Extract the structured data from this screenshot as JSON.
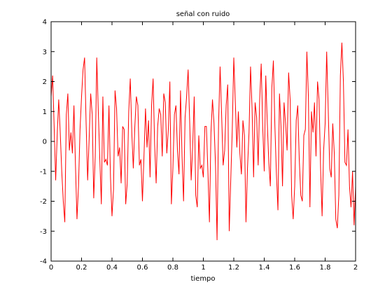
{
  "chart_data": {
    "type": "line",
    "title": "señal con ruido",
    "x_label": "tiempo",
    "x": [
      0,
      0.01,
      0.02,
      0.03,
      0.04,
      0.05,
      0.06,
      0.07,
      0.08,
      0.09,
      0.1,
      0.11,
      0.12,
      0.13,
      0.14,
      0.15,
      0.16,
      0.17,
      0.18,
      0.19,
      0.2,
      0.21,
      0.22,
      0.23,
      0.24,
      0.25,
      0.26,
      0.27,
      0.28,
      0.29,
      0.3,
      0.31,
      0.32,
      0.33,
      0.34,
      0.35,
      0.36,
      0.37,
      0.38,
      0.39,
      0.4,
      0.41,
      0.42,
      0.43,
      0.44,
      0.45,
      0.46,
      0.47,
      0.48,
      0.49,
      0.5,
      0.51,
      0.52,
      0.53,
      0.54,
      0.55,
      0.56,
      0.57,
      0.58,
      0.59,
      0.6,
      0.61,
      0.62,
      0.63,
      0.64,
      0.65,
      0.66,
      0.67,
      0.68,
      0.69,
      0.7,
      0.71,
      0.72,
      0.73,
      0.74,
      0.75,
      0.76,
      0.77,
      0.78,
      0.79,
      0.8,
      0.81,
      0.82,
      0.83,
      0.84,
      0.85,
      0.86,
      0.87,
      0.88,
      0.89,
      0.9,
      0.91,
      0.92,
      0.93,
      0.94,
      0.95,
      0.96,
      0.97,
      0.98,
      0.99,
      1,
      1.01,
      1.02,
      1.03,
      1.04,
      1.05,
      1.06,
      1.07,
      1.08,
      1.09,
      1.1,
      1.11,
      1.12,
      1.13,
      1.14,
      1.15,
      1.16,
      1.17,
      1.18,
      1.19,
      1.2,
      1.21,
      1.22,
      1.23,
      1.24,
      1.25,
      1.26,
      1.27,
      1.28,
      1.29,
      1.3,
      1.31,
      1.32,
      1.33,
      1.34,
      1.35,
      1.36,
      1.37,
      1.38,
      1.39,
      1.4,
      1.41,
      1.42,
      1.43,
      1.44,
      1.45,
      1.46,
      1.47,
      1.48,
      1.49,
      1.5,
      1.51,
      1.52,
      1.53,
      1.54,
      1.55,
      1.56,
      1.57,
      1.58,
      1.59,
      1.6,
      1.61,
      1.62,
      1.63,
      1.64,
      1.65,
      1.66,
      1.67,
      1.68,
      1.69,
      1.7,
      1.71,
      1.72,
      1.73,
      1.74,
      1.75,
      1.76,
      1.77,
      1.78,
      1.79,
      1.8,
      1.81,
      1.82,
      1.83,
      1.84,
      1.85,
      1.86,
      1.87,
      1.88,
      1.89,
      1.9,
      1.91,
      1.92,
      1.93,
      1.94,
      1.95,
      1.96,
      1.97,
      1.98,
      1.99,
      2
    ],
    "series": [
      {
        "color": "#ff0000",
        "values": [
          1.5,
          2.2,
          0.5,
          -1.3,
          0.2,
          1.4,
          0.3,
          -1.0,
          -2.0,
          -2.7,
          0.9,
          1.6,
          -0.3,
          0.3,
          -0.4,
          1.2,
          -0.8,
          -2.6,
          -1.5,
          0.4,
          1.5,
          2.4,
          2.8,
          0.6,
          -1.3,
          0.1,
          1.6,
          0.9,
          -1.9,
          -0.5,
          2.8,
          1.0,
          -0.6,
          -2.1,
          1.5,
          -0.7,
          -0.6,
          -0.8,
          1.2,
          -1.2,
          -2.5,
          -1.6,
          1.7,
          1.1,
          -0.5,
          -0.2,
          -1.4,
          0.5,
          0.4,
          -2.1,
          -1.4,
          1.0,
          2.1,
          0.3,
          -0.9,
          0.5,
          1.5,
          1.2,
          -0.8,
          -0.6,
          -2.0,
          -0.5,
          1.1,
          -0.2,
          0.7,
          -1.2,
          1.2,
          2.1,
          -0.1,
          -1.4,
          0.5,
          1.1,
          0.9,
          -0.5,
          1.6,
          1.3,
          -0.4,
          0.4,
          2.0,
          -2.1,
          -0.9,
          0.9,
          1.2,
          -0.3,
          -1.1,
          1.7,
          -0.5,
          -2.0,
          0.8,
          1.5,
          2.4,
          0.7,
          -1.3,
          -0.2,
          1.5,
          -1.8,
          -2.2,
          0.2,
          -0.9,
          -0.8,
          -1.2,
          0.5,
          0.5,
          -1.0,
          -2.7,
          0.3,
          1.4,
          0.6,
          -0.8,
          -3.3,
          0.6,
          2.5,
          0.9,
          -0.8,
          -0.3,
          1.2,
          1.9,
          -3.0,
          -1.3,
          0.4,
          2.8,
          1.3,
          -0.2,
          1.0,
          -0.4,
          -1.1,
          0.7,
          0.2,
          -2.7,
          -0.9,
          0.3,
          2.5,
          1.1,
          -1.2,
          1.3,
          0.8,
          -0.8,
          1.4,
          2.6,
          0.5,
          -1.0,
          2.2,
          0.6,
          -0.7,
          -1.5,
          1.8,
          2.7,
          0.5,
          -1.1,
          -2.3,
          1.6,
          0.5,
          -1.5,
          1.3,
          0.6,
          -0.3,
          2.3,
          1.4,
          -1.8,
          -2.6,
          -1.5,
          0.7,
          1.2,
          -0.6,
          -1.8,
          -2.0,
          0.2,
          0.4,
          3.0,
          1.5,
          -2.2,
          1.0,
          0.3,
          1.3,
          -0.5,
          2.0,
          1.4,
          -0.9,
          -2.5,
          -0.3,
          0.6,
          3.0,
          1.1,
          -0.9,
          -1.2,
          0.6,
          -0.4,
          -2.6,
          -2.9,
          -1.8,
          2.2,
          3.3,
          2.0,
          -0.7,
          -0.8,
          0.4,
          -1.5,
          -2.2,
          -1.0,
          -2.8,
          -1.5
        ]
      }
    ],
    "xlim": [
      0,
      2
    ],
    "ylim": [
      -4,
      4
    ],
    "xticks": [
      0,
      0.2,
      0.4,
      0.6,
      0.8,
      1,
      1.2,
      1.4,
      1.6,
      1.8,
      2
    ],
    "yticks": [
      -4,
      -3,
      -2,
      -1,
      0,
      1,
      2,
      3,
      4
    ],
    "grid": false
  }
}
